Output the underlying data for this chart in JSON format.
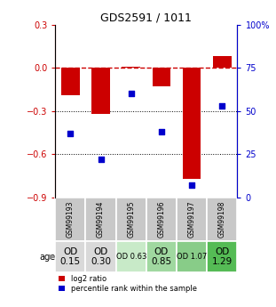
{
  "title": "GDS2591 / 1011",
  "samples": [
    "GSM99193",
    "GSM99194",
    "GSM99195",
    "GSM99196",
    "GSM99197",
    "GSM99198"
  ],
  "log2_ratio": [
    -0.19,
    -0.32,
    0.01,
    -0.13,
    -0.77,
    0.08
  ],
  "percentile_rank": [
    37,
    22,
    60,
    38,
    7,
    53
  ],
  "ylim_left": [
    -0.9,
    0.3
  ],
  "ylim_right": [
    0,
    100
  ],
  "yticks_left": [
    0.3,
    0.0,
    -0.3,
    -0.6,
    -0.9
  ],
  "yticks_right": [
    100,
    75,
    50,
    25,
    0
  ],
  "ytick_labels_right": [
    "100%",
    "75",
    "50",
    "25",
    "0"
  ],
  "bar_color": "#cc0000",
  "marker_color": "#0000cc",
  "dashed_line_color": "#cc0000",
  "age_labels": [
    "OD\n0.15",
    "OD\n0.30",
    "OD 0.63",
    "OD\n0.85",
    "OD 1.07",
    "OD\n1.29"
  ],
  "age_bg_colors": [
    "#d9d9d9",
    "#d9d9d9",
    "#c8eac8",
    "#a0d8a0",
    "#88cc88",
    "#55bb55"
  ],
  "age_font_sizes": [
    7.5,
    7.5,
    6,
    7.5,
    6,
    7.5
  ],
  "sample_bg_color": "#c8c8c8",
  "legend_red_label": "log2 ratio",
  "legend_blue_label": "percentile rank within the sample"
}
